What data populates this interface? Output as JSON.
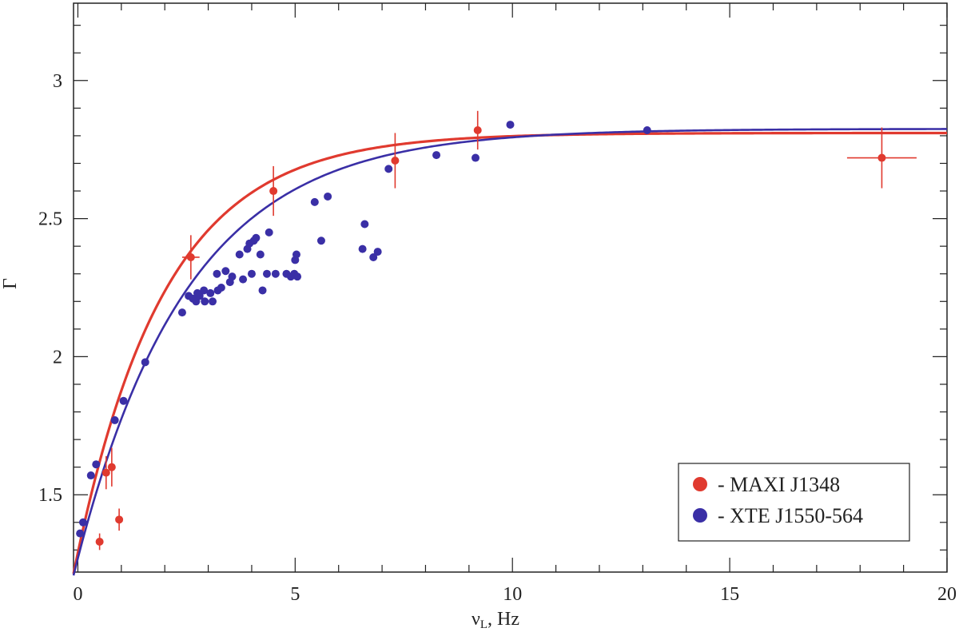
{
  "chart_data": {
    "type": "scatter",
    "xlabel": "ν",
    "xlabel_sub": "L",
    "xlabel_unit": ",  Hz",
    "ylabel": "Γ",
    "xlim": [
      -0.1,
      20
    ],
    "ylim": [
      1.22,
      3.28
    ],
    "x_ticks": [
      0,
      5,
      10,
      15,
      20
    ],
    "y_ticks": [
      1.5,
      2,
      2.5,
      3
    ],
    "x_tick_labels": [
      "0",
      "5",
      "10",
      "15",
      "20"
    ],
    "y_tick_labels": [
      "1.5",
      "2",
      "2.5",
      "3"
    ],
    "grid": false,
    "legend_position": "bottom-right",
    "series": [
      {
        "name": "- MAXI J1348",
        "color": "#e03a2f",
        "points": [
          {
            "x": 0.5,
            "y": 1.33,
            "yerr": 0.03
          },
          {
            "x": 0.65,
            "y": 1.58,
            "yerr": 0.06
          },
          {
            "x": 0.78,
            "y": 1.6,
            "yerr": 0.07
          },
          {
            "x": 0.95,
            "y": 1.41,
            "yerr": 0.04
          },
          {
            "x": 2.6,
            "y": 2.36,
            "yerr": 0.08,
            "xerr": 0.2
          },
          {
            "x": 4.5,
            "y": 2.6,
            "yerr": 0.09
          },
          {
            "x": 7.3,
            "y": 2.71,
            "yerr": 0.1
          },
          {
            "x": 9.2,
            "y": 2.82,
            "yerr": 0.07
          },
          {
            "x": 18.5,
            "y": 2.72,
            "yerr": 0.11,
            "xerr": 0.8
          }
        ],
        "fit": {
          "a": 2.81,
          "b": 1.29,
          "tau": 2.05
        }
      },
      {
        "name": "- XTE J1550-564",
        "color": "#3a2fa6",
        "points": [
          {
            "x": 0.05,
            "y": 1.36
          },
          {
            "x": 0.12,
            "y": 1.4
          },
          {
            "x": 0.3,
            "y": 1.57
          },
          {
            "x": 0.42,
            "y": 1.61
          },
          {
            "x": 0.85,
            "y": 1.77
          },
          {
            "x": 1.05,
            "y": 1.84
          },
          {
            "x": 1.55,
            "y": 1.98
          },
          {
            "x": 2.4,
            "y": 2.16
          },
          {
            "x": 2.55,
            "y": 2.22
          },
          {
            "x": 2.65,
            "y": 2.21
          },
          {
            "x": 2.72,
            "y": 2.2
          },
          {
            "x": 2.75,
            "y": 2.23
          },
          {
            "x": 2.8,
            "y": 2.22
          },
          {
            "x": 2.9,
            "y": 2.24
          },
          {
            "x": 2.92,
            "y": 2.2
          },
          {
            "x": 3.05,
            "y": 2.23
          },
          {
            "x": 3.1,
            "y": 2.2
          },
          {
            "x": 3.2,
            "y": 2.3
          },
          {
            "x": 3.22,
            "y": 2.24
          },
          {
            "x": 3.3,
            "y": 2.25
          },
          {
            "x": 3.4,
            "y": 2.31
          },
          {
            "x": 3.5,
            "y": 2.27
          },
          {
            "x": 3.55,
            "y": 2.29
          },
          {
            "x": 3.72,
            "y": 2.37
          },
          {
            "x": 3.8,
            "y": 2.28
          },
          {
            "x": 3.9,
            "y": 2.39
          },
          {
            "x": 3.95,
            "y": 2.41
          },
          {
            "x": 4.0,
            "y": 2.3
          },
          {
            "x": 4.05,
            "y": 2.42
          },
          {
            "x": 4.1,
            "y": 2.43
          },
          {
            "x": 4.2,
            "y": 2.37
          },
          {
            "x": 4.25,
            "y": 2.24
          },
          {
            "x": 4.35,
            "y": 2.3
          },
          {
            "x": 4.4,
            "y": 2.45
          },
          {
            "x": 4.55,
            "y": 2.3
          },
          {
            "x": 4.8,
            "y": 2.3
          },
          {
            "x": 4.9,
            "y": 2.29
          },
          {
            "x": 4.98,
            "y": 2.3
          },
          {
            "x": 5.0,
            "y": 2.35
          },
          {
            "x": 5.03,
            "y": 2.37
          },
          {
            "x": 5.05,
            "y": 2.29
          },
          {
            "x": 5.45,
            "y": 2.56
          },
          {
            "x": 5.6,
            "y": 2.42
          },
          {
            "x": 5.75,
            "y": 2.58
          },
          {
            "x": 6.55,
            "y": 2.39
          },
          {
            "x": 6.6,
            "y": 2.48
          },
          {
            "x": 6.8,
            "y": 2.36
          },
          {
            "x": 6.9,
            "y": 2.38
          },
          {
            "x": 7.15,
            "y": 2.68
          },
          {
            "x": 8.25,
            "y": 2.73
          },
          {
            "x": 9.15,
            "y": 2.72
          },
          {
            "x": 9.95,
            "y": 2.84
          },
          {
            "x": 13.1,
            "y": 2.82
          }
        ],
        "fit": {
          "a": 2.825,
          "b": 1.27,
          "tau": 2.55
        }
      }
    ]
  }
}
